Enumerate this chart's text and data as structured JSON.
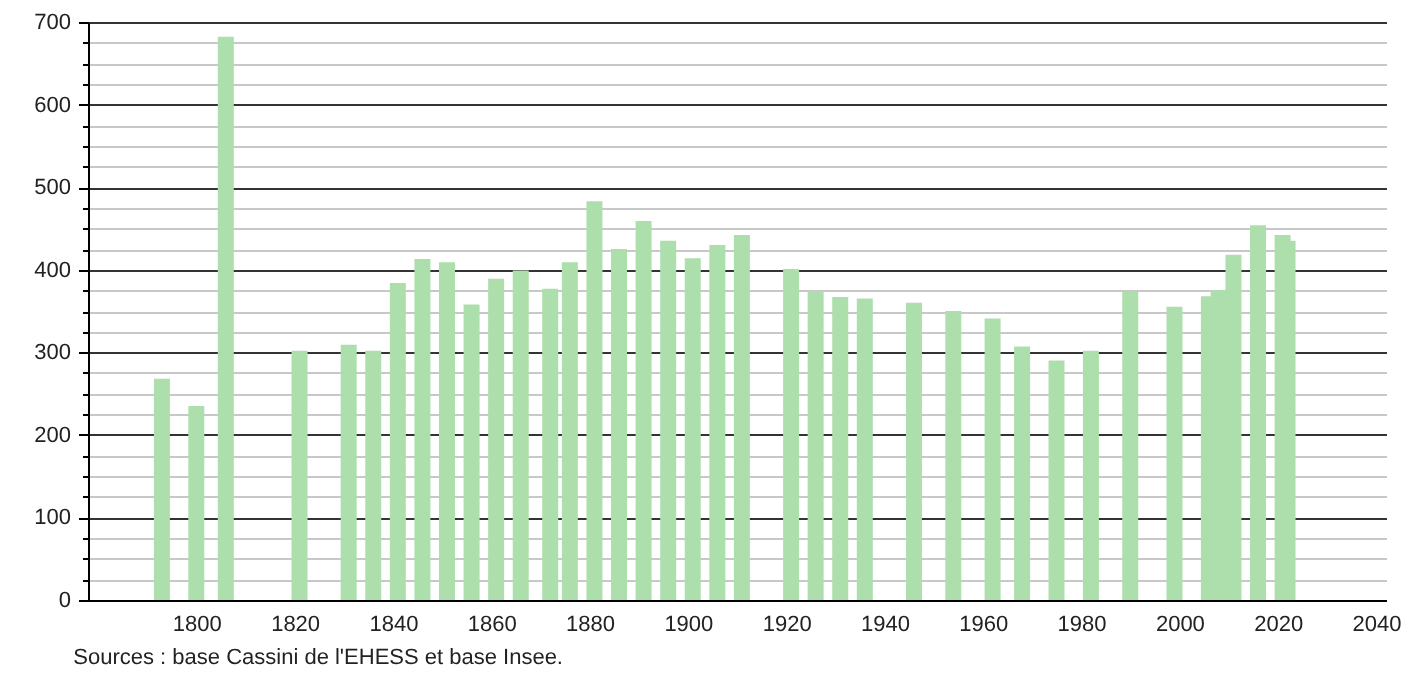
{
  "chart_data": {
    "type": "bar",
    "x": [
      1793,
      1800,
      1806,
      1821,
      1831,
      1836,
      1841,
      1846,
      1851,
      1856,
      1861,
      1866,
      1872,
      1876,
      1881,
      1886,
      1891,
      1896,
      1901,
      1906,
      1911,
      1921,
      1926,
      1931,
      1936,
      1946,
      1954,
      1962,
      1968,
      1975,
      1982,
      1990,
      1999,
      2006,
      2008,
      2011,
      2016,
      2021,
      2022
    ],
    "values": [
      268,
      235,
      682,
      302,
      309,
      302,
      384,
      413,
      409,
      358,
      389,
      399,
      377,
      409,
      483,
      425,
      459,
      435,
      414,
      430,
      442,
      401,
      374,
      367,
      365,
      360,
      350,
      341,
      307,
      290,
      302,
      373,
      355,
      368,
      375,
      418,
      454,
      442,
      435
    ],
    "color": "#addfad",
    "xlim": [
      1780,
      2040
    ],
    "xticks": [
      1800,
      1820,
      1840,
      1860,
      1880,
      1900,
      1920,
      1940,
      1960,
      1980,
      2000,
      2020,
      2040
    ],
    "ylim": [
      0,
      700
    ],
    "yticks": [
      0,
      {
        "value": 25,
        "label": null
      },
      {
        "value": 50,
        "label": null
      },
      {
        "value": 75,
        "label": null
      },
      100,
      {
        "value": 125,
        "label": null
      },
      {
        "value": 150,
        "label": null
      },
      {
        "value": 175,
        "label": null
      },
      200,
      {
        "value": 225,
        "label": null
      },
      {
        "value": 250,
        "label": null
      },
      {
        "value": 275,
        "label": null
      },
      300,
      {
        "value": 325,
        "label": null
      },
      {
        "value": 350,
        "label": null
      },
      {
        "value": 375,
        "label": null
      },
      400,
      {
        "value": 425,
        "label": null
      },
      {
        "value": 450,
        "label": null
      },
      {
        "value": 475,
        "label": null
      },
      500,
      {
        "value": 525,
        "label": null
      },
      {
        "value": 550,
        "label": null
      },
      {
        "value": 575,
        "label": null
      },
      600,
      {
        "value": 625,
        "label": null
      },
      {
        "value": 650,
        "label": null
      },
      {
        "value": 675,
        "label": null
      },
      700
    ],
    "grid": "y",
    "annotations": [
      "Sources : base Cassini de l'EHESS et base Insee."
    ]
  }
}
